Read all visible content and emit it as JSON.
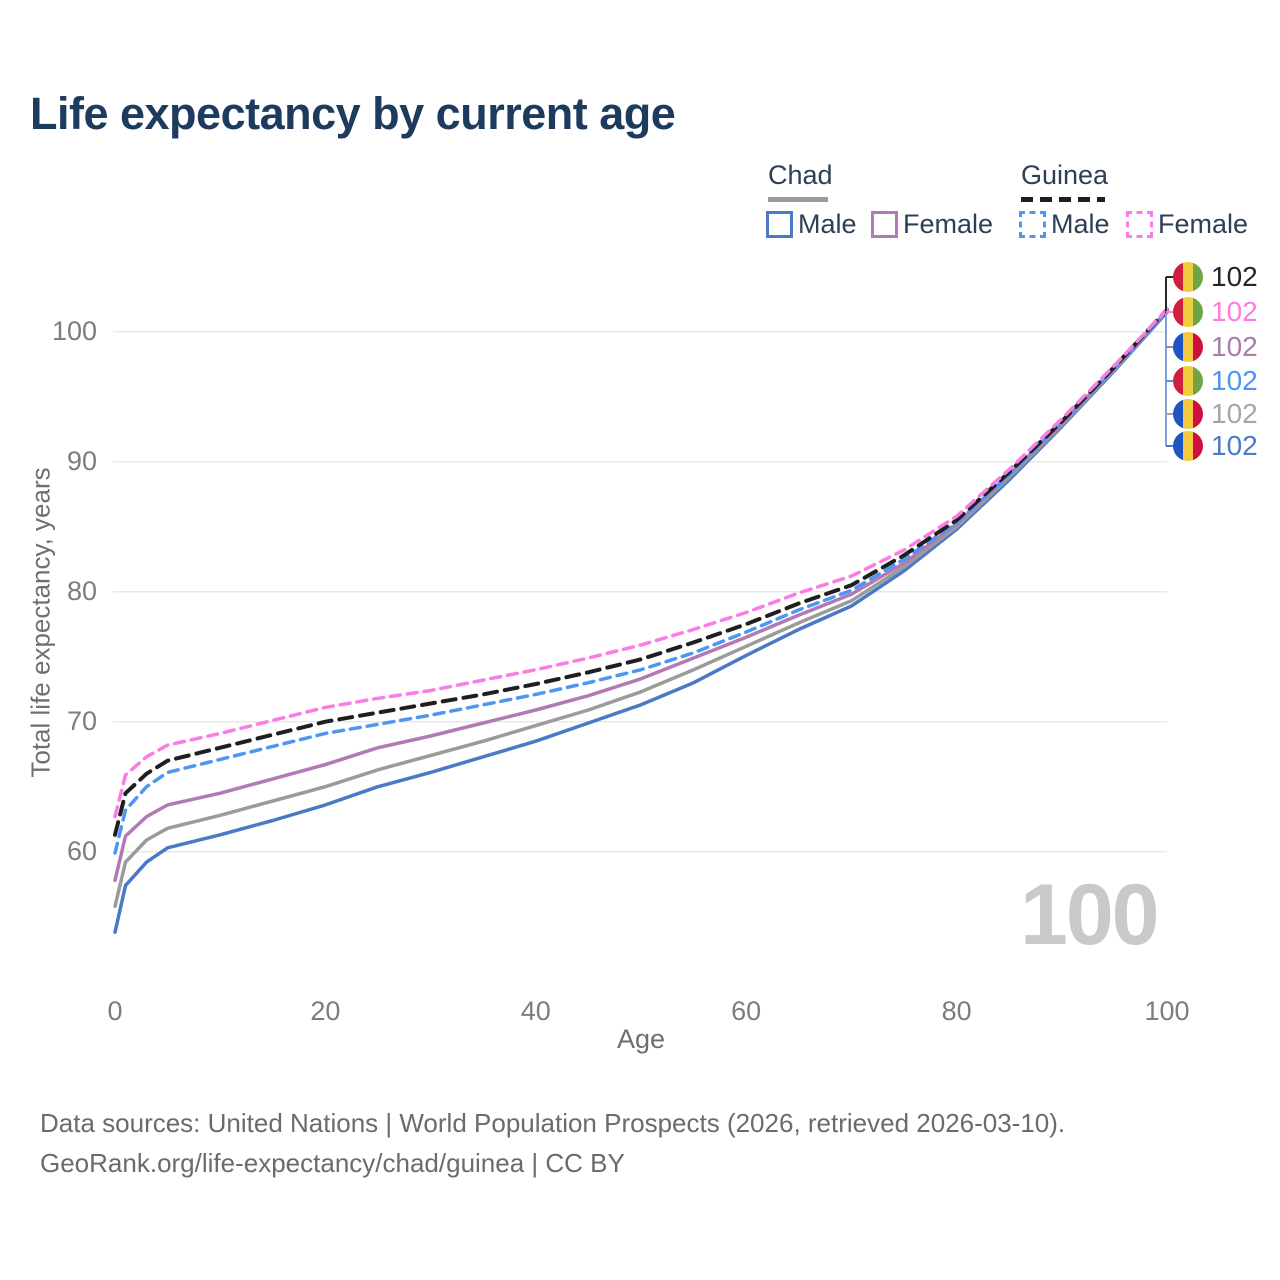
{
  "title": "Life expectancy by current age",
  "watermark": "100",
  "legend": {
    "groups": [
      {
        "label": "Chad",
        "underline_style": "solid",
        "underline_color": "#9b9b9b",
        "items": [
          {
            "label": "Male",
            "color": "#4a7ac6",
            "dash": false
          },
          {
            "label": "Female",
            "color": "#b27ab4",
            "dash": false
          }
        ]
      },
      {
        "label": "Guinea",
        "underline_style": "dashed",
        "underline_color": "#1f1f1f",
        "items": [
          {
            "label": "Male",
            "color": "#4d97f2",
            "dash": true
          },
          {
            "label": "Female",
            "color": "#fb7ce4",
            "dash": true
          }
        ]
      }
    ]
  },
  "chart_data": {
    "type": "line",
    "title": "Life expectancy by current age",
    "xlabel": "Age",
    "ylabel": "Total life expectancy, years",
    "x": [
      0,
      1,
      3,
      5,
      10,
      15,
      20,
      25,
      30,
      35,
      40,
      45,
      50,
      55,
      60,
      65,
      70,
      75,
      80,
      85,
      90,
      95,
      100
    ],
    "xticks": [
      0,
      20,
      40,
      60,
      80,
      100
    ],
    "yticks": [
      100,
      90,
      80,
      70,
      60
    ],
    "xlim": [
      0,
      100
    ],
    "ylim": [
      53,
      103
    ],
    "grid": "horizontal",
    "gridline_color": "#e8e8e8",
    "legend_position": "top-right",
    "series": [
      {
        "name": "Chad Male",
        "country": "Chad",
        "sex": "Male",
        "style": "solid",
        "color": "#4a7ac6",
        "width": 3.5,
        "values": [
          53.8,
          57.4,
          59.2,
          60.3,
          61.3,
          62.4,
          63.6,
          65.0,
          66.1,
          67.3,
          68.5,
          69.9,
          71.3,
          73.0,
          75.1,
          77.1,
          78.9,
          81.6,
          84.8,
          88.6,
          92.7,
          97.0,
          101.5
        ]
      },
      {
        "name": "Chad",
        "country": "Chad",
        "sex": "Both",
        "style": "solid",
        "color": "#9b9b9b",
        "width": 3.5,
        "values": [
          55.8,
          59.2,
          60.9,
          61.8,
          62.8,
          63.9,
          65.0,
          66.3,
          67.4,
          68.5,
          69.7,
          70.9,
          72.3,
          74.0,
          75.8,
          77.6,
          79.3,
          81.9,
          85.0,
          88.8,
          92.8,
          97.1,
          101.6
        ]
      },
      {
        "name": "Chad Female",
        "country": "Chad",
        "sex": "Female",
        "style": "solid",
        "color": "#b27ab4",
        "width": 3.5,
        "values": [
          57.8,
          61.2,
          62.7,
          63.6,
          64.5,
          65.6,
          66.7,
          68.0,
          68.9,
          69.9,
          70.9,
          72.0,
          73.3,
          74.9,
          76.5,
          78.2,
          79.8,
          82.2,
          85.2,
          89.0,
          92.9,
          97.2,
          101.6
        ]
      },
      {
        "name": "Guinea Male",
        "country": "Guinea",
        "sex": "Male",
        "style": "dashed",
        "color": "#4d97f2",
        "width": 3.5,
        "values": [
          59.9,
          63.2,
          65.0,
          66.1,
          67.1,
          68.1,
          69.1,
          69.8,
          70.5,
          71.3,
          72.1,
          73.0,
          74.0,
          75.3,
          76.9,
          78.6,
          80.1,
          82.5,
          85.3,
          89.0,
          93.0,
          97.2,
          101.6
        ]
      },
      {
        "name": "Guinea",
        "country": "Guinea",
        "sex": "Both",
        "style": "dashed",
        "color": "#1f1f1f",
        "width": 4,
        "values": [
          61.3,
          64.5,
          66.0,
          67.0,
          68.0,
          69.0,
          70.0,
          70.7,
          71.4,
          72.1,
          72.9,
          73.8,
          74.8,
          76.1,
          77.5,
          79.1,
          80.5,
          82.8,
          85.5,
          89.2,
          93.1,
          97.3,
          101.7
        ]
      },
      {
        "name": "Guinea Female",
        "country": "Guinea",
        "sex": "Female",
        "style": "dashed",
        "color": "#fb7ce4",
        "width": 3.5,
        "values": [
          62.7,
          65.9,
          67.3,
          68.2,
          69.1,
          70.1,
          71.1,
          71.8,
          72.4,
          73.2,
          74.0,
          74.9,
          75.9,
          77.1,
          78.4,
          79.9,
          81.2,
          83.2,
          85.8,
          89.4,
          93.3,
          97.4,
          101.7
        ]
      }
    ]
  },
  "end_labels": [
    {
      "series": "Guinea",
      "flag": "guinea",
      "value": "102",
      "color": "#262626"
    },
    {
      "series": "Guinea Female",
      "flag": "guinea",
      "value": "102",
      "color": "#ff7be0"
    },
    {
      "series": "Chad Female",
      "flag": "chad",
      "value": "102",
      "color": "#a97ca9"
    },
    {
      "series": "Guinea Male",
      "flag": "guinea",
      "value": "102",
      "color": "#4c96f0"
    },
    {
      "series": "Chad",
      "flag": "chad",
      "value": "102",
      "color": "#a6a6a6"
    },
    {
      "series": "Chad Male",
      "flag": "chad",
      "value": "102",
      "color": "#4a7bc8"
    }
  ],
  "flags": {
    "guinea": [
      "#d01f3c",
      "#f0cc3f",
      "#6fa544"
    ],
    "chad": [
      "#1e55c2",
      "#f2c940",
      "#d0103c"
    ]
  },
  "footer": {
    "line1": "Data sources: United Nations | World Population Prospects (2026, retrieved 2026-03-10).",
    "line2": "GeoRank.org/life-expectancy/chad/guinea | CC BY"
  }
}
